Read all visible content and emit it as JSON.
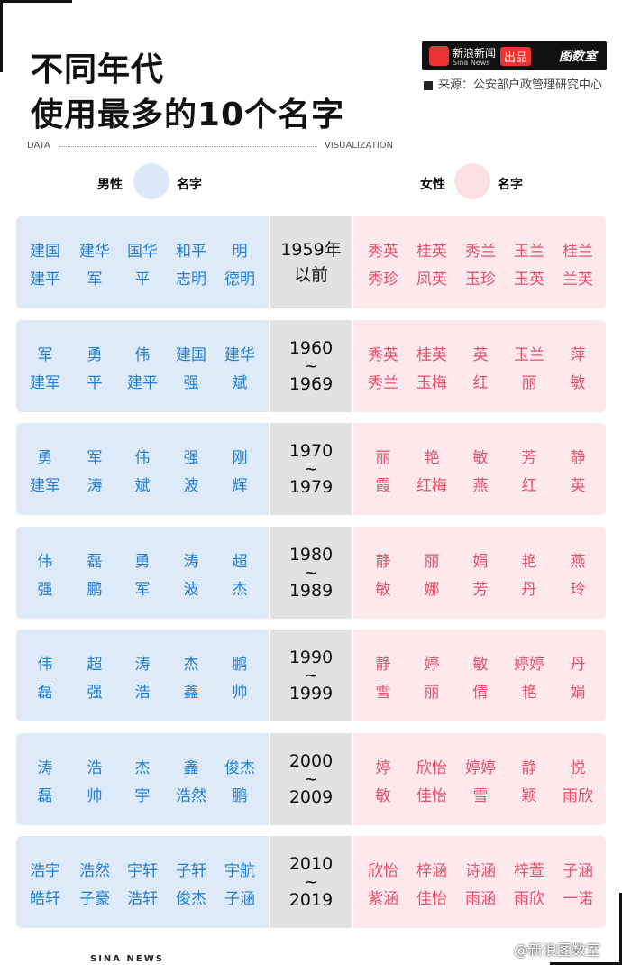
{
  "header": {
    "title": [
      "不同年代",
      "使用最多的10个名字"
    ],
    "brand": {
      "name": "新浪新闻",
      "sub": "Sina News",
      "produce": "出品",
      "studio": "图数室"
    },
    "source": "来源：公安部户政管理研究中心",
    "data_label": "DATA",
    "viz_label": "VISUALIZATION"
  },
  "legend": {
    "male": "男性",
    "male_name": "名字",
    "female": "女性",
    "female_name": "名字"
  },
  "table": {
    "rows": [
      {
        "male": [
          "建国",
          "建华",
          "国华",
          "和平",
          "明",
          "建平",
          "军",
          "平",
          "志明",
          "德明"
        ],
        "period": [
          "1959年",
          "以前"
        ],
        "female": [
          "秀英",
          "桂英",
          "秀兰",
          "玉兰",
          "桂兰",
          "秀珍",
          "凤英",
          "玉珍",
          "玉英",
          "兰英"
        ]
      },
      {
        "male": [
          "军",
          "勇",
          "伟",
          "建国",
          "建华",
          "建军",
          "平",
          "建平",
          "强",
          "斌"
        ],
        "period": [
          "1960",
          "~",
          "1969"
        ],
        "female": [
          "秀英",
          "桂英",
          "英",
          "玉兰",
          "萍",
          "秀兰",
          "玉梅",
          "红",
          "丽",
          "敏"
        ]
      },
      {
        "male": [
          "勇",
          "军",
          "伟",
          "强",
          "刚",
          "建军",
          "涛",
          "斌",
          "波",
          "辉"
        ],
        "period": [
          "1970",
          "~",
          "1979"
        ],
        "female": [
          "丽",
          "艳",
          "敏",
          "芳",
          "静",
          "霞",
          "红梅",
          "燕",
          "红",
          "英"
        ]
      },
      {
        "male": [
          "伟",
          "磊",
          "勇",
          "涛",
          "超",
          "强",
          "鹏",
          "军",
          "波",
          "杰"
        ],
        "period": [
          "1980",
          "~",
          "1989"
        ],
        "female": [
          "静",
          "丽",
          "娟",
          "艳",
          "燕",
          "敏",
          "娜",
          "芳",
          "丹",
          "玲"
        ]
      },
      {
        "male": [
          "伟",
          "超",
          "涛",
          "杰",
          "鹏",
          "磊",
          "强",
          "浩",
          "鑫",
          "帅"
        ],
        "period": [
          "1990",
          "~",
          "1999"
        ],
        "female": [
          "静",
          "婷",
          "敏",
          "婷婷",
          "丹",
          "雪",
          "丽",
          "倩",
          "艳",
          "娟"
        ]
      },
      {
        "male": [
          "涛",
          "浩",
          "杰",
          "鑫",
          "俊杰",
          "磊",
          "帅",
          "宇",
          "浩然",
          "鹏"
        ],
        "period": [
          "2000",
          "~",
          "2009"
        ],
        "female": [
          "婷",
          "欣怡",
          "婷婷",
          "静",
          "悦",
          "敏",
          "佳怡",
          "雪",
          "颖",
          "雨欣"
        ]
      },
      {
        "male": [
          "浩宇",
          "浩然",
          "宇轩",
          "子轩",
          "宇航",
          "皓轩",
          "子豪",
          "浩轩",
          "俊杰",
          "子涵"
        ],
        "period": [
          "2010",
          "~",
          "2019"
        ],
        "female": [
          "欣怡",
          "梓涵",
          "诗涵",
          "梓萱",
          "子涵",
          "紫涵",
          "佳怡",
          "雨涵",
          "雨欣",
          "一诺"
        ]
      }
    ]
  },
  "footer": {
    "brand": "SINA NEWS",
    "credit": "@新浪图数室"
  }
}
